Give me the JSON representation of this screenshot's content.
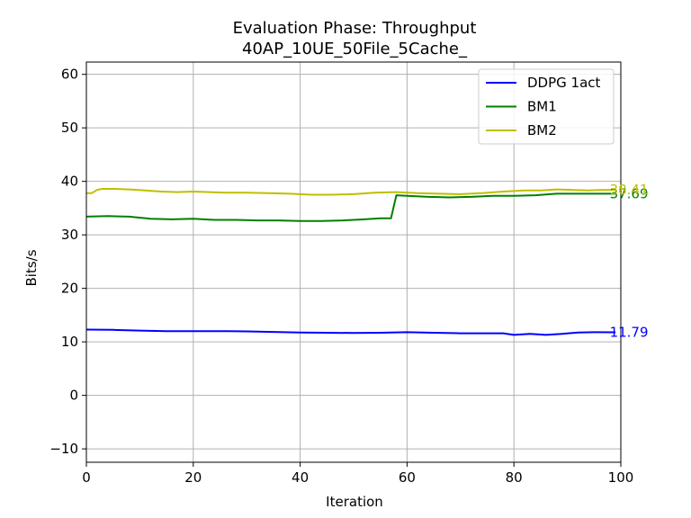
{
  "chart_data": {
    "type": "line",
    "title_line1": "Evaluation Phase: Throughput",
    "title_line2": "40AP_10UE_50File_5Cache_",
    "xlabel": "Iteration",
    "ylabel": "Bits/s",
    "xlim": [
      0,
      100
    ],
    "ylim": [
      -12.5,
      62.3
    ],
    "xticks": [
      0,
      20,
      40,
      60,
      80,
      100
    ],
    "yticks": [
      -10,
      0,
      10,
      20,
      30,
      40,
      50,
      60
    ],
    "grid": true,
    "legend_position": "top-right",
    "series": [
      {
        "name": "DDPG 1act",
        "color": "#0000ff",
        "end_label": "11.79",
        "points": [
          [
            0,
            12.3
          ],
          [
            5,
            12.25
          ],
          [
            10,
            12.1
          ],
          [
            15,
            12.0
          ],
          [
            20,
            12.0
          ],
          [
            25,
            12.0
          ],
          [
            30,
            11.95
          ],
          [
            35,
            11.85
          ],
          [
            40,
            11.75
          ],
          [
            45,
            11.7
          ],
          [
            50,
            11.65
          ],
          [
            55,
            11.7
          ],
          [
            60,
            11.8
          ],
          [
            65,
            11.7
          ],
          [
            70,
            11.6
          ],
          [
            75,
            11.6
          ],
          [
            78,
            11.6
          ],
          [
            80,
            11.3
          ],
          [
            83,
            11.5
          ],
          [
            86,
            11.3
          ],
          [
            89,
            11.5
          ],
          [
            92,
            11.75
          ],
          [
            95,
            11.8
          ],
          [
            99,
            11.79
          ]
        ]
      },
      {
        "name": "BM1",
        "color": "#008000",
        "end_label": "37.69",
        "points": [
          [
            0,
            33.4
          ],
          [
            4,
            33.5
          ],
          [
            8,
            33.4
          ],
          [
            12,
            33.0
          ],
          [
            16,
            32.9
          ],
          [
            20,
            33.0
          ],
          [
            24,
            32.8
          ],
          [
            28,
            32.8
          ],
          [
            32,
            32.7
          ],
          [
            36,
            32.7
          ],
          [
            40,
            32.6
          ],
          [
            44,
            32.6
          ],
          [
            48,
            32.7
          ],
          [
            52,
            32.9
          ],
          [
            55,
            33.1
          ],
          [
            57,
            33.1
          ],
          [
            58,
            37.4
          ],
          [
            60,
            37.3
          ],
          [
            64,
            37.1
          ],
          [
            68,
            37.0
          ],
          [
            72,
            37.1
          ],
          [
            76,
            37.3
          ],
          [
            80,
            37.3
          ],
          [
            84,
            37.4
          ],
          [
            88,
            37.7
          ],
          [
            92,
            37.7
          ],
          [
            96,
            37.7
          ],
          [
            99,
            37.69
          ]
        ]
      },
      {
        "name": "BM2",
        "color": "#bfbf00",
        "end_label": "38.41",
        "points": [
          [
            0,
            37.8
          ],
          [
            1,
            37.8
          ],
          [
            2,
            38.4
          ],
          [
            3,
            38.6
          ],
          [
            5,
            38.6
          ],
          [
            8,
            38.5
          ],
          [
            11,
            38.3
          ],
          [
            14,
            38.1
          ],
          [
            17,
            38.0
          ],
          [
            20,
            38.1
          ],
          [
            23,
            38.0
          ],
          [
            26,
            37.9
          ],
          [
            30,
            37.9
          ],
          [
            34,
            37.8
          ],
          [
            38,
            37.7
          ],
          [
            42,
            37.5
          ],
          [
            46,
            37.5
          ],
          [
            50,
            37.6
          ],
          [
            54,
            37.9
          ],
          [
            58,
            38.0
          ],
          [
            62,
            37.8
          ],
          [
            66,
            37.7
          ],
          [
            70,
            37.6
          ],
          [
            74,
            37.8
          ],
          [
            78,
            38.1
          ],
          [
            82,
            38.3
          ],
          [
            85,
            38.3
          ],
          [
            88,
            38.5
          ],
          [
            91,
            38.4
          ],
          [
            94,
            38.3
          ],
          [
            96,
            38.4
          ],
          [
            99,
            38.41
          ]
        ]
      }
    ]
  }
}
